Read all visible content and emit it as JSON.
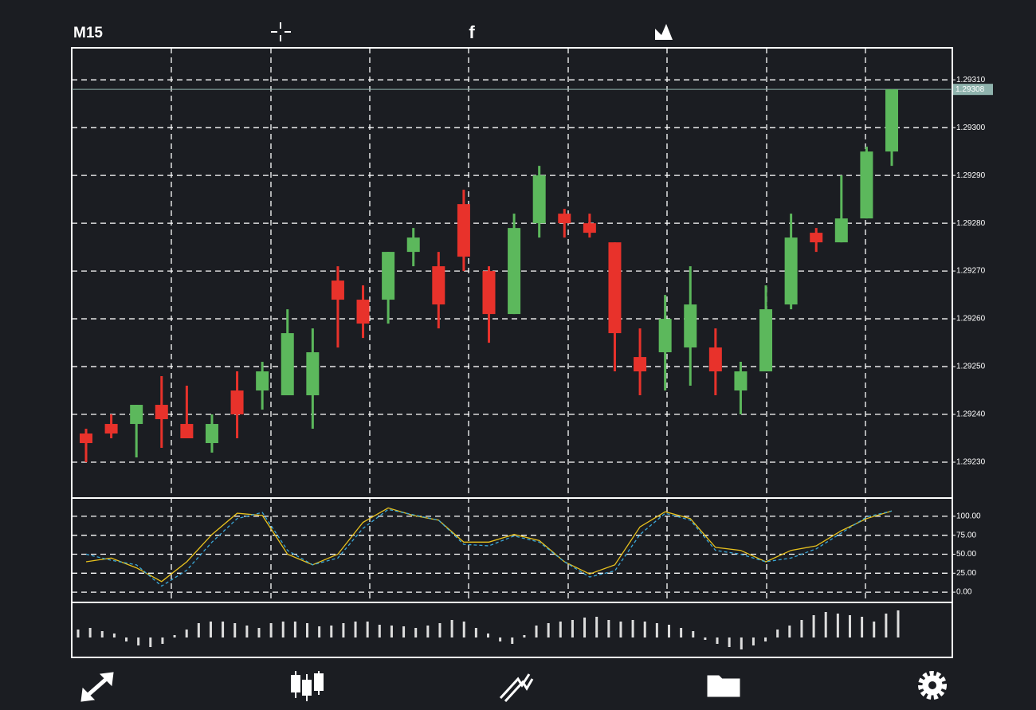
{
  "toolbar": {
    "timeframe": "M15",
    "share_icon": "f"
  },
  "chart_data": [
    {
      "type": "candlestick",
      "categories": [
        null,
        null,
        null,
        null,
        null,
        null,
        null,
        null,
        null,
        null,
        null,
        null,
        null,
        null,
        null,
        null,
        null,
        null,
        null,
        null,
        null,
        null,
        null,
        null,
        null,
        null,
        null,
        null,
        null,
        null,
        null,
        null,
        null
      ],
      "open": [
        1.29236,
        1.29238,
        1.29238,
        1.29242,
        1.29238,
        1.29234,
        1.29245,
        1.29245,
        1.29244,
        1.29244,
        1.29268,
        1.29264,
        1.29264,
        1.29274,
        1.29271,
        1.29284,
        1.2927,
        1.29261,
        1.2928,
        1.29282,
        1.2928,
        1.29276,
        1.29252,
        1.29253,
        1.29254,
        1.29254,
        1.29245,
        1.29249,
        1.29263,
        1.29278,
        1.29276,
        1.29281,
        1.29295
      ],
      "high": [
        1.29237,
        1.2924,
        1.29242,
        1.29248,
        1.29246,
        1.2924,
        1.29249,
        1.29251,
        1.29262,
        1.29258,
        1.29271,
        1.29267,
        1.29274,
        1.29279,
        1.29274,
        1.29287,
        1.29271,
        1.29282,
        1.29292,
        1.29283,
        1.29282,
        1.29276,
        1.29258,
        1.29265,
        1.29271,
        1.29258,
        1.29251,
        1.29267,
        1.29282,
        1.29279,
        1.2929,
        1.29296,
        1.29308
      ],
      "low": [
        1.2923,
        1.29235,
        1.29231,
        1.29233,
        1.29235,
        1.29232,
        1.29235,
        1.29241,
        1.29244,
        1.29237,
        1.29254,
        1.29256,
        1.29259,
        1.29271,
        1.29258,
        1.2927,
        1.29255,
        1.29261,
        1.29277,
        1.29277,
        1.29277,
        1.29249,
        1.29244,
        1.29245,
        1.29246,
        1.29244,
        1.2924,
        1.29249,
        1.29262,
        1.29274,
        1.29276,
        1.29281,
        1.29292
      ],
      "close": [
        1.29234,
        1.29236,
        1.29242,
        1.29239,
        1.29235,
        1.29238,
        1.2924,
        1.29249,
        1.29257,
        1.29253,
        1.29264,
        1.29259,
        1.29274,
        1.29277,
        1.29263,
        1.29273,
        1.29261,
        1.29279,
        1.2929,
        1.2928,
        1.29278,
        1.29257,
        1.29249,
        1.2926,
        1.29263,
        1.29249,
        1.29249,
        1.29262,
        1.29277,
        1.29276,
        1.29281,
        1.29295,
        1.29308
      ],
      "up_color": "#5cb85c",
      "down_color": "#e8322b",
      "ylim": [
        1.292225,
        1.293167
      ],
      "yticks": [
        {
          "value": 1.2923,
          "label": "1.29230"
        },
        {
          "value": 1.2924,
          "label": "1.29240"
        },
        {
          "value": 1.2925,
          "label": "1.29250"
        },
        {
          "value": 1.2926,
          "label": "1.29260"
        },
        {
          "value": 1.2927,
          "label": "1.29270"
        },
        {
          "value": 1.2928,
          "label": "1.29280"
        },
        {
          "value": 1.2929,
          "label": "1.29290"
        },
        {
          "value": 1.293,
          "label": "1.29300"
        },
        {
          "value": 1.2931,
          "label": "1.29310"
        }
      ],
      "current_price": 1.29308,
      "grid": true
    },
    {
      "type": "line",
      "series": [
        {
          "name": null,
          "color": "#e8c21e",
          "values": [
            40,
            45,
            32,
            14,
            40,
            76,
            104,
            101,
            50,
            36,
            50,
            92,
            111,
            101,
            95,
            66,
            66,
            76,
            68,
            40,
            24,
            36,
            86,
            106,
            97,
            59,
            55,
            40,
            55,
            61,
            81,
            97,
            107
          ]
        },
        {
          "name": null,
          "color": "#3aa7d8",
          "values": [
            50,
            42,
            36,
            8,
            29,
            66,
            97,
            105,
            55,
            36,
            45,
            84,
            109,
            102,
            95,
            63,
            61,
            74,
            66,
            40,
            20,
            28,
            76,
            104,
            95,
            55,
            50,
            40,
            45,
            57,
            78,
            99,
            107
          ]
        }
      ],
      "ylim": [
        -12.5,
        123
      ],
      "yticks": [
        {
          "value": 100,
          "label": "100.00"
        },
        {
          "value": 75,
          "label": "75.00"
        },
        {
          "value": 50,
          "label": "50.00"
        },
        {
          "value": 25,
          "label": "25.00"
        },
        {
          "value": 0,
          "label": "0.00"
        }
      ],
      "grid": true
    },
    {
      "type": "bar",
      "values": [
        10,
        12,
        8,
        5,
        -5,
        -10,
        -12,
        -8,
        3,
        10,
        18,
        20,
        20,
        18,
        15,
        12,
        18,
        20,
        20,
        18,
        14,
        15,
        18,
        20,
        20,
        16,
        15,
        14,
        12,
        15,
        18,
        22,
        20,
        12,
        5,
        -5,
        -8,
        3,
        15,
        18,
        20,
        22,
        25,
        26,
        22,
        20,
        22,
        20,
        18,
        16,
        12,
        8,
        -3,
        -8,
        -12,
        -15,
        -10,
        -5,
        10,
        15,
        22,
        28,
        32,
        30,
        28,
        26,
        20,
        30,
        34
      ],
      "color": "#dddddd",
      "ylim": [
        -25,
        43
      ]
    }
  ]
}
